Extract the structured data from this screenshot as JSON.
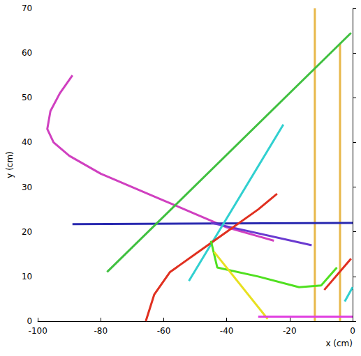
{
  "chart_data": {
    "type": "line",
    "x_label": "x (cm)",
    "y_label": "y (cm)",
    "xlim": [
      -100,
      0
    ],
    "xticks": [
      -100,
      -80,
      -60,
      -40,
      -20,
      0
    ],
    "ylim": [
      0,
      70
    ],
    "yticks": [
      0,
      10,
      20,
      30,
      40,
      50,
      60,
      70
    ],
    "grid": false,
    "series": [
      {
        "color": "#e8b84a",
        "x": [
          -12,
          -12
        ],
        "values": [
          0,
          70
        ]
      },
      {
        "color": "#e8b84a",
        "x": [
          -4,
          -4
        ],
        "values": [
          0,
          62
        ]
      },
      {
        "color": "#d040c0",
        "x": [
          -89,
          -93,
          -96,
          -97,
          -95,
          -90,
          -80,
          -70,
          -60,
          -50,
          -40,
          -30,
          -25
        ],
        "values": [
          55,
          51,
          47,
          43,
          40,
          37,
          33,
          30,
          27,
          24,
          21,
          19,
          18
        ]
      },
      {
        "color": "#2a2ab0",
        "x": [
          -89,
          0
        ],
        "values": [
          21.7,
          22
        ]
      },
      {
        "color": "#6a3ad0",
        "x": [
          -45,
          -13
        ],
        "values": [
          22,
          17
        ]
      },
      {
        "color": "#40c040",
        "x": [
          -78,
          -0.5
        ],
        "values": [
          11,
          64.5
        ]
      },
      {
        "color": "#30d0d0",
        "x": [
          -52,
          -22
        ],
        "values": [
          9,
          44
        ]
      },
      {
        "color": "#e03020",
        "x": [
          -65.7,
          -63,
          -58,
          -50,
          -40,
          -30,
          -24
        ],
        "values": [
          0,
          6,
          11,
          15,
          20,
          25,
          28.5
        ]
      },
      {
        "color": "#e03020",
        "x": [
          -9,
          -0.5
        ],
        "values": [
          7,
          14
        ]
      },
      {
        "color": "#50e020",
        "x": [
          -45,
          -43,
          -30,
          -17,
          -10,
          -5
        ],
        "values": [
          18,
          12,
          10,
          7.6,
          8,
          12
        ]
      },
      {
        "color": "#e8e020",
        "x": [
          -44,
          -27
        ],
        "values": [
          15.5,
          0.5
        ]
      },
      {
        "color": "#30d0d0",
        "x": [
          -2.5,
          0
        ],
        "values": [
          4.4,
          7.6
        ]
      },
      {
        "color": "#e040e0",
        "x": [
          -30,
          0
        ],
        "values": [
          1,
          1
        ]
      }
    ]
  }
}
